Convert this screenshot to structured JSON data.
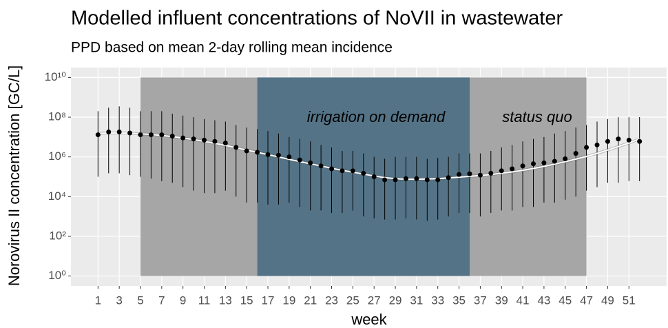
{
  "chart_data": {
    "type": "errorbar",
    "title": "Modelled influent concentrations of NoVII in wastewater",
    "subtitle": "PPD based on mean 2-day rolling mean incidence",
    "xlabel": "week",
    "ylabel": "Norovirus II concentration [GC/L]",
    "log_y": true,
    "grid": true,
    "xlim": [
      -1.55,
      54.55
    ],
    "ylim": [
      0.316,
      31600000000
    ],
    "xticks": [
      1,
      3,
      5,
      7,
      9,
      11,
      13,
      15,
      17,
      19,
      21,
      23,
      25,
      27,
      29,
      31,
      33,
      35,
      37,
      39,
      41,
      43,
      45,
      47,
      49,
      51
    ],
    "yticks": [
      {
        "value": 1,
        "label": "10⁰"
      },
      {
        "value": 100,
        "label": "10²"
      },
      {
        "value": 10000,
        "label": "10⁴"
      },
      {
        "value": 1000000,
        "label": "10⁶"
      },
      {
        "value": 100000000,
        "label": "10⁸"
      },
      {
        "value": 10000000000,
        "label": "10¹⁰"
      }
    ],
    "regions": [
      {
        "label": "status quo",
        "x": [
          5,
          47
        ],
        "color": "#a6a6a6",
        "text_color": "#000000"
      },
      {
        "label": "irrigation on demand",
        "x": [
          16,
          36
        ],
        "color": "#547386",
        "text_color": "#1d4a6b"
      }
    ],
    "x": [
      1,
      2,
      3,
      4,
      5,
      6,
      7,
      8,
      9,
      10,
      11,
      12,
      13,
      14,
      15,
      16,
      17,
      18,
      19,
      20,
      21,
      22,
      23,
      24,
      25,
      26,
      27,
      28,
      29,
      30,
      31,
      32,
      33,
      34,
      35,
      36,
      37,
      38,
      39,
      40,
      41,
      42,
      43,
      44,
      45,
      46,
      47,
      48,
      49,
      50,
      51,
      52
    ],
    "values": [
      13000000,
      18000000,
      18000000,
      16000000,
      13000000,
      13000000,
      13000000,
      11000000,
      9000000,
      8000000,
      7000000,
      6000000,
      5000000,
      3000000,
      2000000,
      1700000,
      1300000,
      1200000,
      1000000,
      700000,
      500000,
      350000,
      250000,
      200000,
      200000,
      150000,
      100000,
      70000,
      70000,
      80000,
      80000,
      70000,
      70000,
      90000,
      130000,
      140000,
      120000,
      150000,
      200000,
      250000,
      350000,
      450000,
      500000,
      600000,
      800000,
      1500000,
      3000000,
      4000000,
      6000000,
      8000000,
      7000000,
      6000000
    ],
    "lower": [
      100000,
      150000,
      150000,
      120000,
      100000,
      80000,
      60000,
      50000,
      30000,
      20000,
      15000,
      15000,
      20000,
      10000,
      5000,
      5000,
      4000,
      4000,
      5000,
      3000,
      2000,
      2000,
      1500,
      1500,
      2000,
      1000,
      800,
      700,
      700,
      800,
      700,
      600,
      700,
      1000,
      1500,
      1500,
      1000,
      1500,
      2000,
      2000,
      3000,
      3000,
      5000,
      5000,
      7000,
      10000,
      20000,
      30000,
      50000,
      50000,
      60000,
      60000
    ],
    "upper": [
      200000000,
      300000000,
      350000000,
      300000000,
      200000000,
      200000000,
      200000000,
      150000000,
      120000000,
      100000000,
      80000000,
      70000000,
      60000000,
      40000000,
      30000000,
      25000000,
      20000000,
      15000000,
      10000000,
      8000000,
      6000000,
      4000000,
      3000000,
      2000000,
      2000000,
      1500000,
      1000000,
      800000,
      1000000,
      1000000,
      1000000,
      800000,
      900000,
      1000000,
      1500000,
      1500000,
      1500000,
      2000000,
      3000000,
      4000000,
      6000000,
      8000000,
      10000000,
      15000000,
      20000000,
      30000000,
      40000000,
      60000000,
      80000000,
      100000000,
      100000000,
      100000000
    ],
    "fit": [
      15000000,
      16000000,
      16000000,
      15500000,
      14500000,
      13500000,
      12000000,
      10500000,
      9000000,
      7500000,
      6000000,
      4800000,
      3800000,
      2900000,
      2200000,
      1700000,
      1300000,
      1000000,
      750000,
      580000,
      450000,
      350000,
      270000,
      210000,
      170000,
      135000,
      110000,
      90000,
      80000,
      75000,
      75000,
      77000,
      80000,
      87000,
      95000,
      105000,
      115000,
      130000,
      150000,
      175000,
      210000,
      260000,
      330000,
      430000,
      570000,
      770000,
      1050000,
      1500000,
      2200000,
      3300000,
      5000000,
      8000000
    ],
    "point_color": "#000000",
    "fit_color": "#ffffff"
  }
}
